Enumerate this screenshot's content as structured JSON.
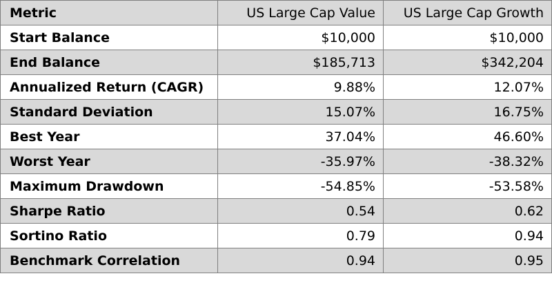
{
  "table": {
    "headers": [
      "Metric",
      "US Large Cap Value",
      "US Large Cap Growth"
    ],
    "rows": [
      [
        "Start Balance",
        "$10,000",
        "$10,000"
      ],
      [
        "End Balance",
        "$185,713",
        "$342,204"
      ],
      [
        "Annualized Return (CAGR)",
        "9.88%",
        "12.07%"
      ],
      [
        "Standard Deviation",
        "15.07%",
        "16.75%"
      ],
      [
        "Best Year",
        "37.04%",
        "46.60%"
      ],
      [
        "Worst Year",
        "-35.97%",
        "-38.32%"
      ],
      [
        "Maximum Drawdown",
        "-54.85%",
        "-53.58%"
      ],
      [
        "Sharpe Ratio",
        "0.54",
        "0.62"
      ],
      [
        "Sortino Ratio",
        "0.79",
        "0.94"
      ],
      [
        "Benchmark Correlation",
        "0.94",
        "0.95"
      ]
    ]
  },
  "colors": {
    "shaded_row": "#d9d9d9",
    "plain_row": "#ffffff",
    "border": "#7f7f7f",
    "text": "#000000"
  }
}
